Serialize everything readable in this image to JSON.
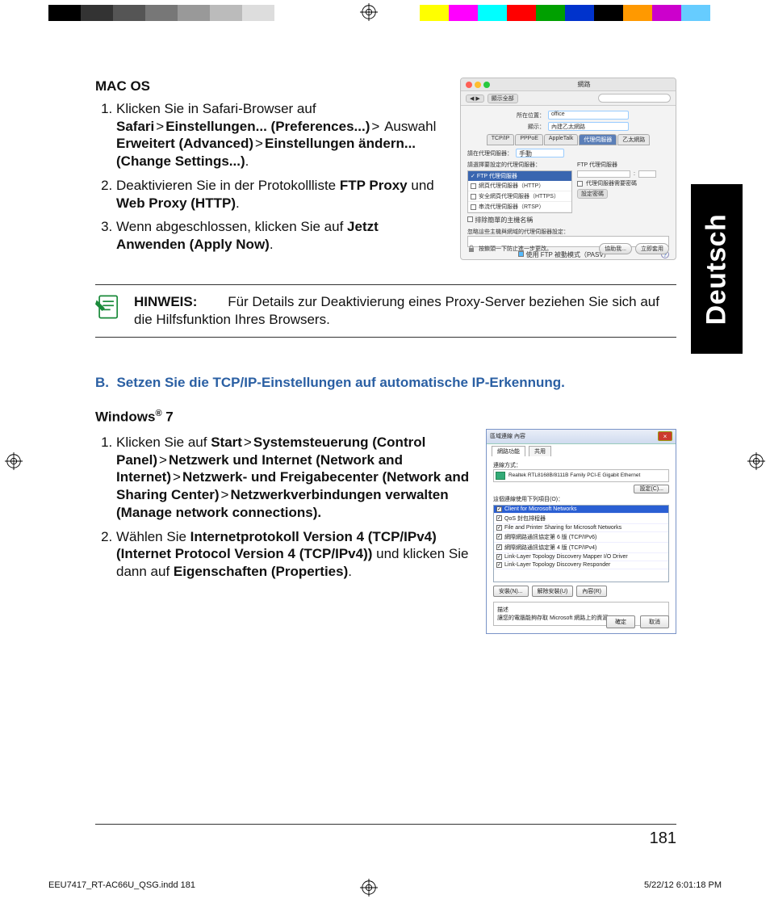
{
  "colorbar_left": [
    "#000000",
    "#333333",
    "#555555",
    "#777777",
    "#999999",
    "#bbbbbb",
    "#dddddd",
    "#ffffff"
  ],
  "colorbar_right": [
    "#ffff00",
    "#ff00ff",
    "#00ffff",
    "#ff0000",
    "#00a000",
    "#0033cc",
    "#000000",
    "#ff9900",
    "#cc00cc",
    "#66ccff"
  ],
  "lang_tab": "Deutsch",
  "macos_heading": "MAC OS",
  "mac_steps": {
    "s1_a": "Klicken Sie in Safari-Browser auf ",
    "s1_safari": "Safari",
    "s1_einst": "Einstellungen... (Preferences...)",
    "s1_ausw": " Auswahl ",
    "s1_erw": "Erweitert (Advanced)",
    "s1_eins2": "Einstellungen ändern... (Change Settings...)",
    "s1_dot": ".",
    "s2_a": "Deaktivieren Sie in der Protokollliste ",
    "s2_ftp": "FTP Proxy",
    "s2_und": " und ",
    "s2_web": "Web Proxy (HTTP)",
    "s2_dot": ".",
    "s3_a": "Wenn abgeschlossen, klicken Sie auf ",
    "s3_apply": "Jetzt Anwenden (Apply Now)",
    "s3_dot": "."
  },
  "gt": ">",
  "mac_dialog": {
    "title": "網路",
    "back": "◀ ▶",
    "showall": "顯示全部",
    "loc_lbl": "所在位置：",
    "loc_val": "office",
    "show_lbl": "顯示：",
    "show_val": "內建乙太網路",
    "tabs": [
      "TCP/IP",
      "PPPoE",
      "AppleTalk",
      "代理伺服器",
      "乙太網路"
    ],
    "proxy_cfg_lbl": "請在代理伺服器：",
    "proxy_cfg_val": "手動",
    "left_title": "請選擇要設定的代理伺服器：",
    "right_title": "FTP 代理伺服器",
    "left_hdr": "FTP 代理伺服器",
    "left_items": [
      "網頁代理伺服器（HTTP）",
      "安全網頁代理伺服器（HTTPS）",
      "串流代理伺服器（RTSP）"
    ],
    "bypass_lbl": "排除簡單的主機名稱",
    "bypass2_lbl": "忽略這些主機與網域的代理伺服器設定：",
    "pwd_lbl": "代理伺服器需要密碼",
    "pwd_btn": "設定密碼",
    "pasv": "使用 FTP 被動模式（PASV）",
    "help": "?",
    "lock_text": "按鎖頭一下防止進一步更改。",
    "assist": "協助我...",
    "apply": "立即套用"
  },
  "note": {
    "label": "HINWEIS:",
    "text": "Für Details zur Deaktivierung eines Proxy-Server beziehen Sie sich auf die Hilfsfunktion Ihres Browsers."
  },
  "section_b": {
    "letter": "B.",
    "title": "Setzen Sie die TCP/IP-Einstellungen auf automatische IP-Erkennung."
  },
  "win_heading_a": "Windows",
  "win_heading_b": " 7",
  "reg_mark": "®",
  "win_steps": {
    "s1_a": "Klicken Sie auf ",
    "s1_start": "Start",
    "s1_cp": "Systemsteuerung (Control Panel)",
    "s1_net": "Netzwerk und Internet (Network and Internet)",
    "s1_nsc": "Netzwerk- und Freigabecenter (Network and Sharing Center)",
    "s1_mnc": "Netzwerkverbindungen verwalten (Manage network connections).",
    "s2_a": "Wählen Sie ",
    "s2_ipv4": "Internetprotokoll Version 4 (TCP/IPv4) (Internet Protocol Version 4 (TCP/IPv4))",
    "s2_b": " und klicken Sie dann auf ",
    "s2_prop": "Eigenschaften (Properties)",
    "s2_dot": "."
  },
  "win_dialog": {
    "title": "區域連線 內容",
    "tab1": "網路功能",
    "tab2": "共用",
    "connect_lbl": "連線方式：",
    "adapter": "Realtek RTL8168B/8111B Family PCI-E Gigabit Ethernet",
    "cfg_btn": "設定(C)...",
    "uses_lbl": "這個連線使用下列項目(O)：",
    "items": [
      "Client for Microsoft Networks",
      "QoS 封包排程器",
      "File and Printer Sharing for Microsoft Networks",
      "網際網路通訊協定第 6 版 (TCP/IPv6)",
      "網際網路通訊協定第 4 版 (TCP/IPv4)",
      "Link-Layer Topology Discovery Mapper I/O Driver",
      "Link-Layer Topology Discovery Responder"
    ],
    "sel_index": 0,
    "install": "安裝(N)...",
    "uninstall": "解除安裝(U)",
    "props": "內容(R)",
    "desc_lbl": "描述",
    "desc_txt": "讓您的電腦能夠存取 Microsoft 網路上的資源。",
    "ok": "確定",
    "cancel": "取消"
  },
  "page_num": "181",
  "footer_file": "EEU7417_RT-AC66U_QSG.indd   181",
  "footer_time": "5/22/12   6:01:18 PM"
}
